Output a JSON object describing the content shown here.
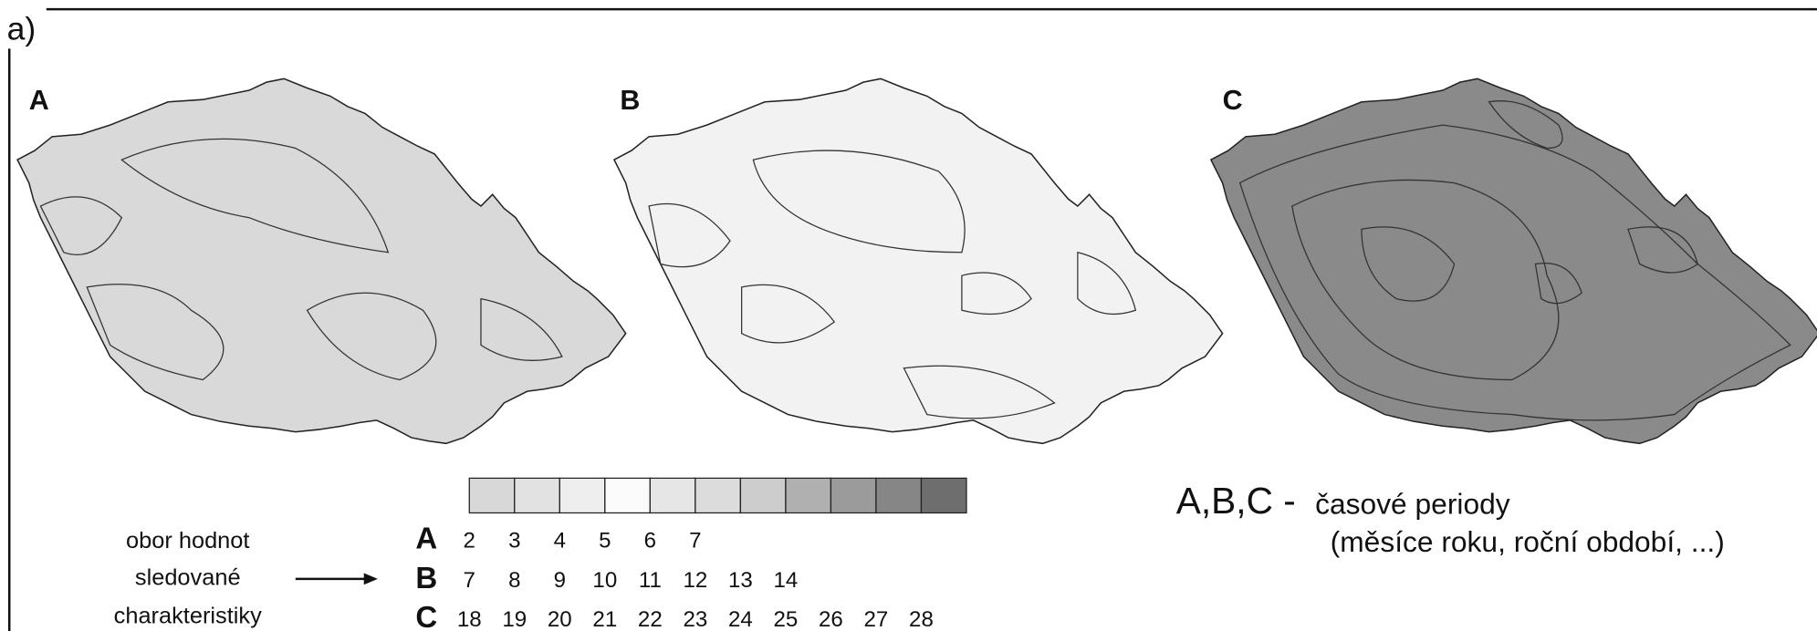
{
  "panel_label": "a)",
  "maps": [
    {
      "label": "A"
    },
    {
      "label": "B"
    },
    {
      "label": "C"
    }
  ],
  "legend": {
    "colors": [
      "#d8d8d8",
      "#e2e2e2",
      "#eeeeee",
      "#fbfbfb",
      "#e6e6e6",
      "#dcdcdc",
      "#cdcdcd",
      "#b0b0b0",
      "#9b9b9b",
      "#868686",
      "#6e6e6e"
    ],
    "caption": [
      "obor hodnot",
      "sledované",
      "charakteristiky"
    ],
    "rows": [
      {
        "label": "A",
        "values": [
          2,
          3,
          4,
          5,
          6,
          7
        ]
      },
      {
        "label": "B",
        "values": [
          7,
          8,
          9,
          10,
          11,
          12,
          13,
          14
        ]
      },
      {
        "label": "C",
        "values": [
          18,
          19,
          20,
          21,
          22,
          23,
          24,
          25,
          26,
          27,
          28
        ]
      }
    ]
  },
  "note": {
    "label": "A,B,C -",
    "title": "časové periody",
    "detail": "(měsíce roku, roční období, ...)"
  }
}
